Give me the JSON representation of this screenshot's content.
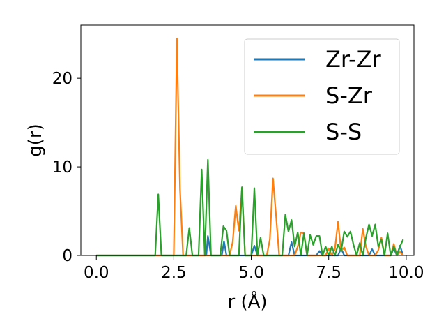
{
  "chart_data": {
    "type": "line",
    "xlabel": "r (Å)",
    "ylabel": "g(r)",
    "xlim": [
      -0.5,
      10.25
    ],
    "ylim": [
      0,
      26
    ],
    "xticks": [
      0.0,
      2.5,
      5.0,
      7.5,
      10.0
    ],
    "xtick_labels": [
      "0.0",
      "2.5",
      "5.0",
      "7.5",
      "10.0"
    ],
    "yticks": [
      0,
      10,
      20
    ],
    "ytick_labels": [
      "0",
      "10",
      "20"
    ],
    "grid": false,
    "legend_position": "top-right",
    "series": [
      {
        "name": "Zr-Zr",
        "color": "#1f77b4",
        "points": [
          [
            0,
            0
          ],
          [
            3.45,
            0
          ],
          [
            3.55,
            0
          ],
          [
            3.6,
            2.2
          ],
          [
            3.7,
            0
          ],
          [
            4.05,
            0
          ],
          [
            4.12,
            1.6
          ],
          [
            4.2,
            0
          ],
          [
            5.0,
            0
          ],
          [
            5.1,
            1.1
          ],
          [
            5.2,
            0
          ],
          [
            6.2,
            0
          ],
          [
            6.3,
            1.5
          ],
          [
            6.4,
            0
          ],
          [
            7.1,
            0
          ],
          [
            7.2,
            0.5
          ],
          [
            7.3,
            0
          ],
          [
            7.8,
            0
          ],
          [
            7.9,
            0.8
          ],
          [
            8.0,
            0
          ],
          [
            8.8,
            0
          ],
          [
            8.9,
            0.7
          ],
          [
            9.0,
            0
          ],
          [
            9.5,
            0
          ],
          [
            9.6,
            0.8
          ],
          [
            9.7,
            0
          ],
          [
            9.8,
            1.1
          ],
          [
            9.9,
            0
          ]
        ]
      },
      {
        "name": "S-Zr",
        "color": "#ff7f0e",
        "points": [
          [
            0,
            0
          ],
          [
            2.5,
            0
          ],
          [
            2.6,
            24.5
          ],
          [
            2.7,
            7.5
          ],
          [
            2.8,
            0
          ],
          [
            4.3,
            0
          ],
          [
            4.4,
            1.5
          ],
          [
            4.5,
            5.6
          ],
          [
            4.6,
            2.8
          ],
          [
            4.7,
            7.6
          ],
          [
            4.8,
            0
          ],
          [
            5.5,
            0
          ],
          [
            5.6,
            1.8
          ],
          [
            5.7,
            8.7
          ],
          [
            5.8,
            4.5
          ],
          [
            5.9,
            0
          ],
          [
            6.4,
            0
          ],
          [
            6.5,
            1.0
          ],
          [
            6.6,
            2.6
          ],
          [
            6.7,
            2.5
          ],
          [
            6.8,
            0
          ],
          [
            7.4,
            0
          ],
          [
            7.5,
            0.8
          ],
          [
            7.6,
            0
          ],
          [
            7.7,
            0.7
          ],
          [
            7.8,
            3.8
          ],
          [
            7.9,
            0.5
          ],
          [
            8.0,
            0.9
          ],
          [
            8.1,
            0
          ],
          [
            8.5,
            0
          ],
          [
            8.6,
            3.0
          ],
          [
            8.7,
            1.0
          ],
          [
            8.8,
            0
          ],
          [
            9.0,
            0
          ],
          [
            9.1,
            0.6
          ],
          [
            9.2,
            2.0
          ],
          [
            9.3,
            0
          ],
          [
            9.5,
            0
          ],
          [
            9.6,
            1.3
          ],
          [
            9.7,
            0
          ],
          [
            9.8,
            0.4
          ],
          [
            9.9,
            0
          ]
        ]
      },
      {
        "name": "S-S",
        "color": "#2ca02c",
        "points": [
          [
            0,
            0
          ],
          [
            1.9,
            0
          ],
          [
            2.0,
            6.9
          ],
          [
            2.1,
            0
          ],
          [
            2.9,
            0
          ],
          [
            3.0,
            3.1
          ],
          [
            3.1,
            0
          ],
          [
            3.3,
            0
          ],
          [
            3.4,
            9.7
          ],
          [
            3.5,
            0
          ],
          [
            3.6,
            10.8
          ],
          [
            3.7,
            0
          ],
          [
            4.0,
            0
          ],
          [
            4.1,
            3.3
          ],
          [
            4.2,
            2.8
          ],
          [
            4.3,
            0
          ],
          [
            4.6,
            0
          ],
          [
            4.7,
            7.7
          ],
          [
            4.8,
            0
          ],
          [
            5.0,
            0
          ],
          [
            5.1,
            7.6
          ],
          [
            5.2,
            0
          ],
          [
            5.3,
            2.0
          ],
          [
            5.4,
            0
          ],
          [
            6.0,
            0
          ],
          [
            6.1,
            4.6
          ],
          [
            6.2,
            2.7
          ],
          [
            6.3,
            4.0
          ],
          [
            6.4,
            1.0
          ],
          [
            6.5,
            2.6
          ],
          [
            6.6,
            0
          ],
          [
            6.7,
            2.5
          ],
          [
            6.8,
            0
          ],
          [
            6.9,
            2.3
          ],
          [
            7.0,
            1.2
          ],
          [
            7.1,
            2.2
          ],
          [
            7.2,
            2.2
          ],
          [
            7.3,
            0
          ],
          [
            7.4,
            1.0
          ],
          [
            7.5,
            0
          ],
          [
            7.6,
            1.0
          ],
          [
            7.7,
            0
          ],
          [
            7.8,
            1.2
          ],
          [
            7.9,
            0.5
          ],
          [
            8.0,
            2.7
          ],
          [
            8.1,
            2.1
          ],
          [
            8.2,
            2.7
          ],
          [
            8.3,
            1.2
          ],
          [
            8.4,
            0
          ],
          [
            8.5,
            1.4
          ],
          [
            8.6,
            0
          ],
          [
            8.7,
            2.0
          ],
          [
            8.8,
            3.5
          ],
          [
            8.9,
            2.2
          ],
          [
            9.0,
            3.5
          ],
          [
            9.1,
            1.0
          ],
          [
            9.2,
            1.8
          ],
          [
            9.3,
            0
          ],
          [
            9.4,
            2.5
          ],
          [
            9.5,
            0
          ],
          [
            9.6,
            1.0
          ],
          [
            9.7,
            0
          ],
          [
            9.8,
            1.0
          ],
          [
            9.9,
            1.8
          ]
        ]
      }
    ]
  }
}
